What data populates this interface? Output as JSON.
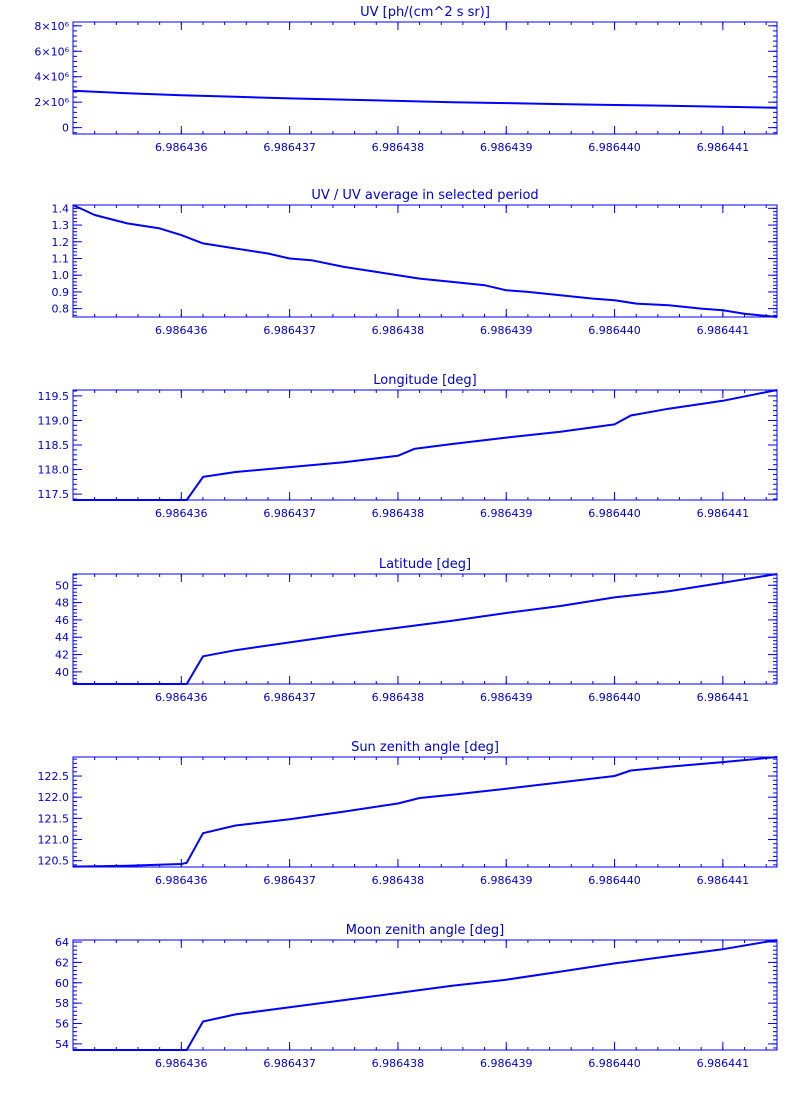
{
  "style": {
    "color": "#0000ff",
    "background": "#ffffff"
  },
  "chart_data": [
    {
      "type": "line",
      "title": "UV [ph/(cm^2 s sr)]",
      "xlabel": "",
      "ylabel": "",
      "xlim": [
        6.986435,
        6.9864415
      ],
      "ylim": [
        -500000,
        8300000
      ],
      "xticks": [
        6.986436,
        6.986437,
        6.986438,
        6.986439,
        6.98644,
        6.986441
      ],
      "xtick_labels": [
        "6.986436",
        "6.986437",
        "6.986438",
        "6.986439",
        "6.986440",
        "6.986441"
      ],
      "yticks": [
        0,
        2000000,
        4000000,
        6000000,
        8000000
      ],
      "ytick_labels": [
        "0",
        "2×10⁶",
        "4×10⁶",
        "6×10⁶",
        "8×10⁶"
      ],
      "grid": false,
      "series": [
        {
          "x": [
            6.986435,
            6.9864355,
            6.986436,
            6.9864365,
            6.986437,
            6.9864375,
            6.986438,
            6.9864385,
            6.986439,
            6.9864395,
            6.98644,
            6.9864405,
            6.986441,
            6.9864415
          ],
          "y": [
            2900000,
            2700000,
            2550000,
            2420000,
            2300000,
            2200000,
            2100000,
            2000000,
            1930000,
            1850000,
            1780000,
            1720000,
            1640000,
            1570000
          ]
        }
      ]
    },
    {
      "type": "line",
      "title": "UV / UV average in selected period",
      "xlabel": "",
      "ylabel": "",
      "xlim": [
        6.986435,
        6.9864415
      ],
      "ylim": [
        0.75,
        1.42
      ],
      "xticks": [
        6.986436,
        6.986437,
        6.986438,
        6.986439,
        6.98644,
        6.986441
      ],
      "xtick_labels": [
        "6.986436",
        "6.986437",
        "6.986438",
        "6.986439",
        "6.986440",
        "6.986441"
      ],
      "yticks": [
        0.8,
        0.9,
        1.0,
        1.1,
        1.2,
        1.3,
        1.4
      ],
      "ytick_labels": [
        "0.8",
        "0.9",
        "1.0",
        "1.1",
        "1.2",
        "1.3",
        "1.4"
      ],
      "grid": false,
      "series": [
        {
          "x": [
            6.986435,
            6.9864352,
            6.9864355,
            6.9864358,
            6.986436,
            6.9864362,
            6.9864365,
            6.9864368,
            6.986437,
            6.9864372,
            6.9864375,
            6.9864378,
            6.986438,
            6.9864382,
            6.9864385,
            6.9864388,
            6.986439,
            6.9864392,
            6.9864395,
            6.9864398,
            6.98644,
            6.9864402,
            6.9864405,
            6.9864408,
            6.986441,
            6.9864412,
            6.9864415
          ],
          "y": [
            1.42,
            1.36,
            1.31,
            1.28,
            1.24,
            1.19,
            1.16,
            1.13,
            1.1,
            1.09,
            1.05,
            1.02,
            1.0,
            0.98,
            0.96,
            0.94,
            0.91,
            0.9,
            0.88,
            0.86,
            0.85,
            0.83,
            0.82,
            0.8,
            0.79,
            0.77,
            0.75
          ]
        }
      ]
    },
    {
      "type": "line",
      "title": "Longitude [deg]",
      "xlabel": "",
      "ylabel": "",
      "xlim": [
        6.986435,
        6.9864415
      ],
      "ylim": [
        117.38,
        119.62
      ],
      "xticks": [
        6.986436,
        6.986437,
        6.986438,
        6.986439,
        6.98644,
        6.986441
      ],
      "xtick_labels": [
        "6.986436",
        "6.986437",
        "6.986438",
        "6.986439",
        "6.986440",
        "6.986441"
      ],
      "yticks": [
        117.5,
        118.0,
        118.5,
        119.0,
        119.5
      ],
      "ytick_labels": [
        "117.5",
        "118.0",
        "118.5",
        "119.0",
        "119.5"
      ],
      "grid": false,
      "series": [
        {
          "x": [
            6.986435,
            6.98643605,
            6.9864362,
            6.9864365,
            6.986437,
            6.9864375,
            6.986438,
            6.98643815,
            6.9864385,
            6.986439,
            6.9864395,
            6.98644,
            6.98644015,
            6.9864405,
            6.986441,
            6.9864415
          ],
          "y": [
            117.38,
            117.38,
            117.85,
            117.95,
            118.05,
            118.15,
            118.28,
            118.42,
            118.52,
            118.65,
            118.77,
            118.92,
            119.1,
            119.24,
            119.4,
            119.62
          ]
        }
      ]
    },
    {
      "type": "line",
      "title": "Latitude [deg]",
      "xlabel": "",
      "ylabel": "",
      "xlim": [
        6.986435,
        6.9864415
      ],
      "ylim": [
        38.6,
        51.3
      ],
      "xticks": [
        6.986436,
        6.986437,
        6.986438,
        6.986439,
        6.98644,
        6.986441
      ],
      "xtick_labels": [
        "6.986436",
        "6.986437",
        "6.986438",
        "6.986439",
        "6.986440",
        "6.986441"
      ],
      "yticks": [
        40,
        42,
        44,
        46,
        48,
        50
      ],
      "ytick_labels": [
        "40",
        "42",
        "44",
        "46",
        "48",
        "50"
      ],
      "grid": false,
      "series": [
        {
          "x": [
            6.986435,
            6.98643605,
            6.9864362,
            6.9864365,
            6.986437,
            6.9864375,
            6.986438,
            6.9864385,
            6.986439,
            6.9864395,
            6.98644,
            6.9864405,
            6.986441,
            6.9864415
          ],
          "y": [
            38.6,
            38.6,
            41.8,
            42.5,
            43.4,
            44.3,
            45.1,
            45.9,
            46.8,
            47.6,
            48.6,
            49.3,
            50.3,
            51.3
          ]
        }
      ]
    },
    {
      "type": "line",
      "title": "Sun zenith angle [deg]",
      "xlabel": "",
      "ylabel": "",
      "xlim": [
        6.986435,
        6.9864415
      ],
      "ylim": [
        120.35,
        122.95
      ],
      "xticks": [
        6.986436,
        6.986437,
        6.986438,
        6.986439,
        6.98644,
        6.986441
      ],
      "xtick_labels": [
        "6.986436",
        "6.986437",
        "6.986438",
        "6.986439",
        "6.986440",
        "6.986441"
      ],
      "yticks": [
        120.5,
        121.0,
        121.5,
        122.0,
        122.5
      ],
      "ytick_labels": [
        "120.5",
        "121.0",
        "121.5",
        "122.0",
        "122.5"
      ],
      "grid": false,
      "series": [
        {
          "x": [
            6.986435,
            6.9864355,
            6.986436,
            6.98643605,
            6.9864362,
            6.9864365,
            6.986437,
            6.9864375,
            6.986438,
            6.9864382,
            6.9864385,
            6.986439,
            6.9864395,
            6.98644,
            6.98644015,
            6.9864405,
            6.986441,
            6.9864415
          ],
          "y": [
            120.36,
            120.38,
            120.42,
            120.45,
            121.15,
            121.33,
            121.48,
            121.66,
            121.85,
            121.98,
            122.06,
            122.2,
            122.35,
            122.5,
            122.63,
            122.72,
            122.83,
            122.95
          ]
        }
      ]
    },
    {
      "type": "line",
      "title": "Moon zenith angle [deg]",
      "xlabel": "",
      "ylabel": "",
      "xlim": [
        6.986435,
        6.9864415
      ],
      "ylim": [
        53.4,
        64.2
      ],
      "xticks": [
        6.986436,
        6.986437,
        6.986438,
        6.986439,
        6.98644,
        6.986441
      ],
      "xtick_labels": [
        "6.986436",
        "6.986437",
        "6.986438",
        "6.986439",
        "6.986440",
        "6.986441"
      ],
      "yticks": [
        54,
        56,
        58,
        60,
        62,
        64
      ],
      "ytick_labels": [
        "54",
        "56",
        "58",
        "60",
        "62",
        "64"
      ],
      "grid": false,
      "series": [
        {
          "x": [
            6.986435,
            6.98643605,
            6.9864362,
            6.9864365,
            6.986437,
            6.9864375,
            6.986438,
            6.9864385,
            6.986439,
            6.9864395,
            6.98644,
            6.9864405,
            6.986441,
            6.9864415
          ],
          "y": [
            53.4,
            53.4,
            56.2,
            56.9,
            57.6,
            58.3,
            59.0,
            59.7,
            60.3,
            61.1,
            61.9,
            62.6,
            63.3,
            64.2
          ]
        }
      ]
    }
  ]
}
